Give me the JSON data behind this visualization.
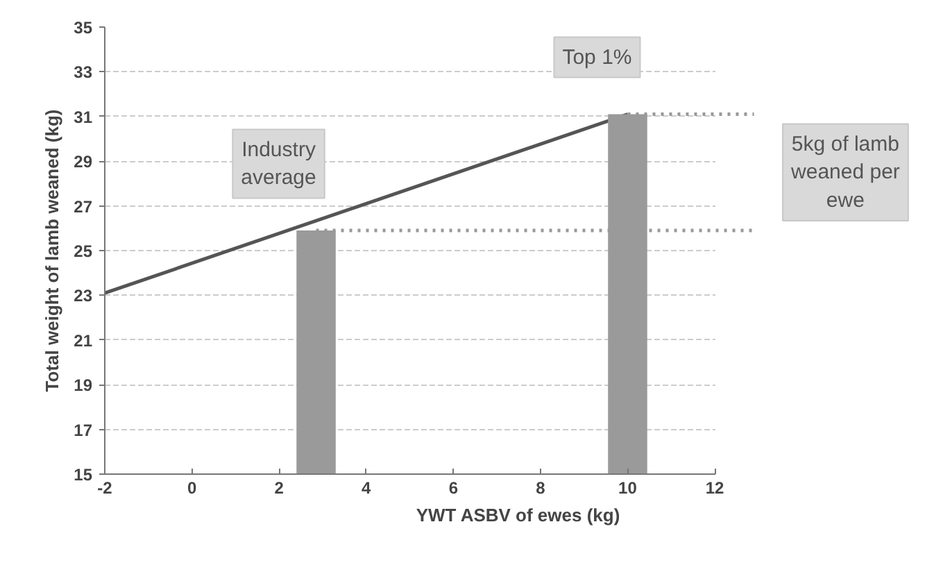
{
  "chart_data": {
    "type": "line",
    "xlabel": "YWT ASBV of ewes (kg)",
    "ylabel": "Total weight of lamb weaned (kg)",
    "xlim": [
      -2,
      12
    ],
    "ylim": [
      15,
      35
    ],
    "xticks": [
      -2,
      0,
      2,
      4,
      6,
      8,
      10,
      12
    ],
    "yticks": [
      15,
      17,
      19,
      21,
      23,
      25,
      27,
      29,
      31,
      33,
      35
    ],
    "grid": "y",
    "marker": "none",
    "line_style": "solid",
    "series": [
      {
        "color": "#555555",
        "x": [
          -2,
          10
        ],
        "values": [
          23.1,
          31.1
        ]
      },
      {
        "type": "bar",
        "color": "#9a9a9a",
        "x": [
          2.85,
          10
        ],
        "values": [
          25.9,
          31.1
        ]
      }
    ],
    "ref_lines": [
      {
        "axis": "y",
        "value": 25.9,
        "color": "#999999",
        "line_style": "dotted"
      },
      {
        "axis": "y",
        "value": 31.1,
        "color": "#999999",
        "line_style": "dotted"
      }
    ],
    "annotations": [
      {
        "text": "Industry average",
        "x": 2.85,
        "y": 25.9
      },
      {
        "text": "Top 1%",
        "x": 10,
        "y": 31.1
      },
      "5kg of lamb weaned per ewe"
    ]
  }
}
